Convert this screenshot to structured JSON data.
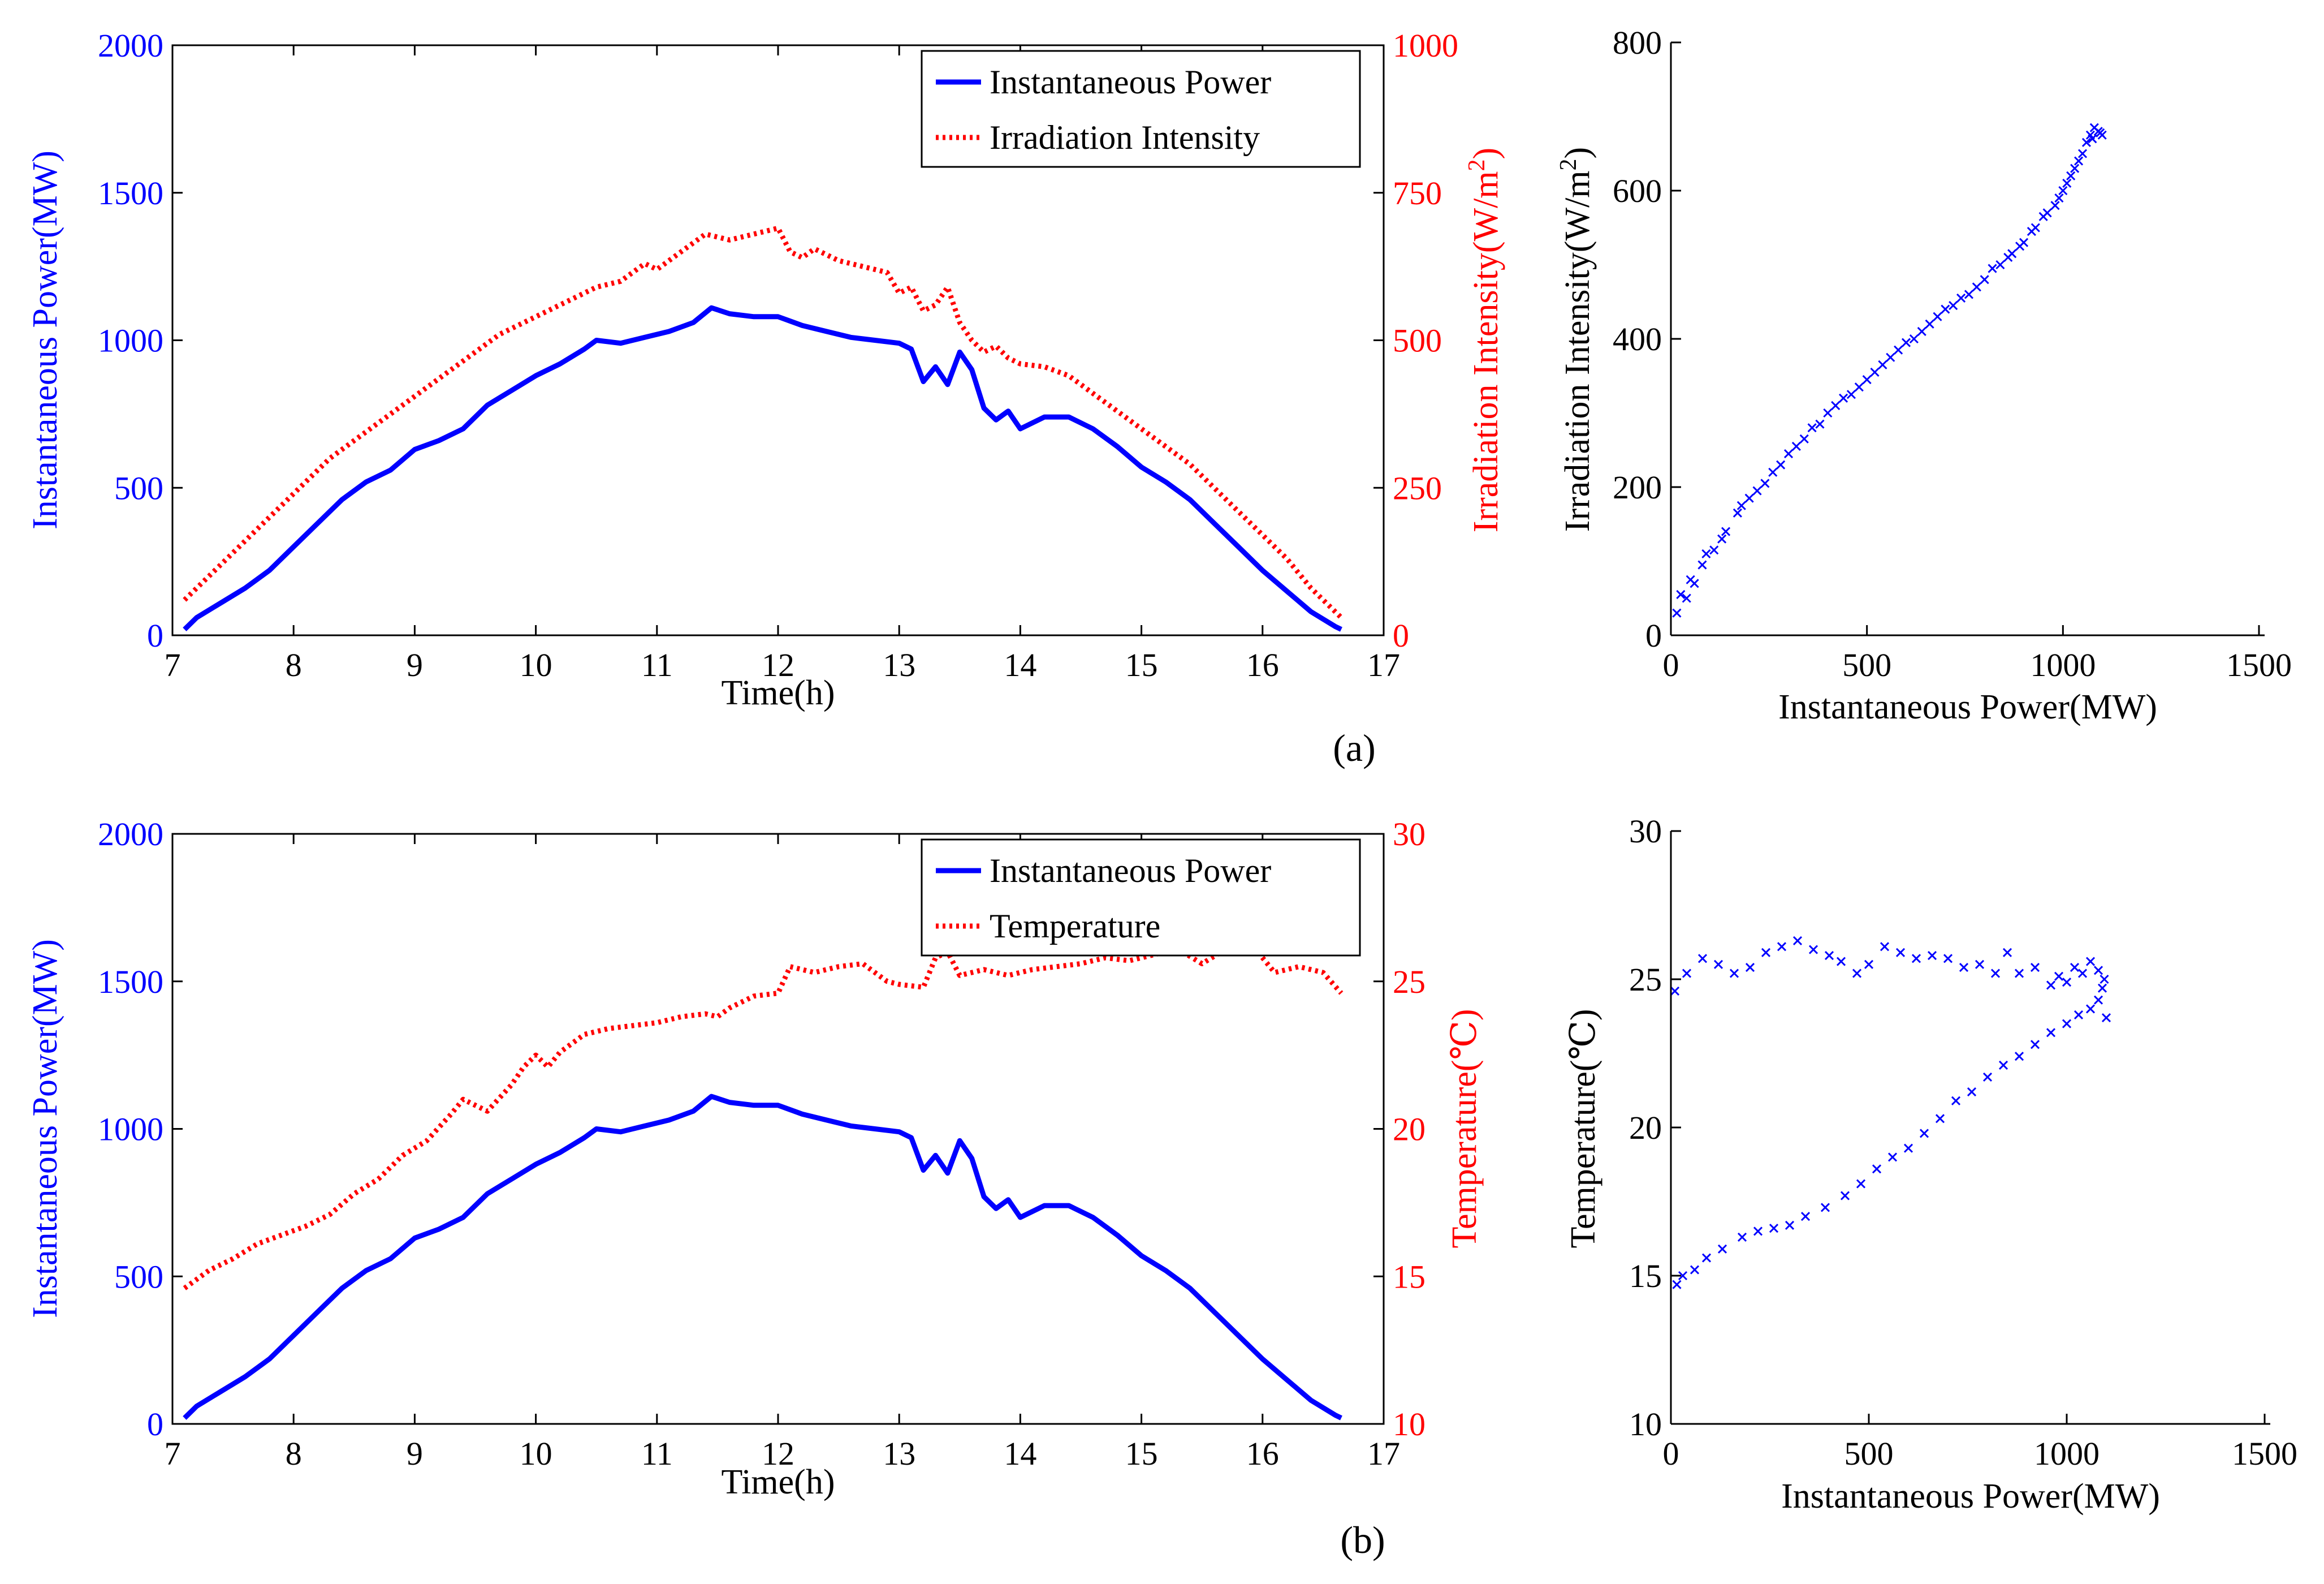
{
  "colors": {
    "blue": "#0000ff",
    "red": "#ff0000",
    "black": "#000000"
  },
  "chart_data": [
    {
      "id": "a-line",
      "type": "line",
      "panel_label": "(a)",
      "xlabel": "Time(h)",
      "xlim": [
        7,
        17
      ],
      "x_ticks": [
        7,
        8,
        9,
        10,
        11,
        12,
        13,
        14,
        15,
        16,
        17
      ],
      "y_left": {
        "label": "Instantaneous Power(MW)",
        "lim": [
          0,
          2000
        ],
        "ticks": [
          0,
          500,
          1000,
          1500,
          2000
        ]
      },
      "y_right": {
        "label_main": "Irradiation Intensity(W/m",
        "label_sup": "2",
        "label_end": ")",
        "lim": [
          0,
          1000
        ],
        "ticks": [
          0,
          250,
          500,
          750,
          1000
        ]
      },
      "legend": [
        "Instantaneous Power",
        "Irradiation Intensity"
      ],
      "series": [
        {
          "name": "Instantaneous Power",
          "axis": "left",
          "style": "solid",
          "x": [
            7.1,
            7.2,
            7.4,
            7.6,
            7.8,
            8.0,
            8.2,
            8.4,
            8.6,
            8.8,
            9.0,
            9.2,
            9.4,
            9.6,
            9.8,
            10.0,
            10.2,
            10.4,
            10.5,
            10.7,
            10.9,
            11.1,
            11.3,
            11.45,
            11.6,
            11.8,
            12.0,
            12.2,
            12.4,
            12.6,
            12.8,
            13.0,
            13.1,
            13.2,
            13.3,
            13.4,
            13.5,
            13.6,
            13.7,
            13.8,
            13.9,
            14.0,
            14.2,
            14.4,
            14.6,
            14.8,
            15.0,
            15.2,
            15.4,
            15.6,
            15.8,
            16.0,
            16.2,
            16.4,
            16.6,
            16.65
          ],
          "y": [
            20,
            60,
            110,
            160,
            220,
            300,
            380,
            460,
            520,
            560,
            630,
            660,
            700,
            780,
            830,
            880,
            920,
            970,
            1000,
            990,
            1010,
            1030,
            1060,
            1110,
            1090,
            1080,
            1080,
            1050,
            1030,
            1010,
            1000,
            990,
            970,
            860,
            910,
            850,
            960,
            900,
            770,
            730,
            760,
            700,
            740,
            740,
            700,
            640,
            570,
            520,
            460,
            380,
            300,
            220,
            150,
            80,
            30,
            20
          ]
        },
        {
          "name": "Irradiation Intensity",
          "axis": "right",
          "style": "dotted",
          "x": [
            7.1,
            7.3,
            7.5,
            7.7,
            7.9,
            8.1,
            8.3,
            8.5,
            8.7,
            8.9,
            9.1,
            9.3,
            9.5,
            9.7,
            9.9,
            10.1,
            10.3,
            10.5,
            10.7,
            10.9,
            11.0,
            11.2,
            11.4,
            11.6,
            11.8,
            12.0,
            12.1,
            12.2,
            12.3,
            12.5,
            12.7,
            12.9,
            13.0,
            13.1,
            13.2,
            13.3,
            13.4,
            13.5,
            13.6,
            13.7,
            13.8,
            13.9,
            14.0,
            14.2,
            14.4,
            14.6,
            14.8,
            15.0,
            15.2,
            15.4,
            15.6,
            15.8,
            16.0,
            16.2,
            16.4,
            16.65
          ],
          "y": [
            60,
            100,
            140,
            180,
            220,
            260,
            300,
            330,
            360,
            390,
            420,
            450,
            480,
            510,
            530,
            550,
            570,
            590,
            600,
            630,
            620,
            650,
            680,
            670,
            680,
            690,
            650,
            640,
            655,
            635,
            625,
            615,
            580,
            590,
            550,
            560,
            590,
            530,
            500,
            480,
            490,
            470,
            460,
            455,
            440,
            410,
            380,
            350,
            320,
            290,
            250,
            210,
            170,
            130,
            80,
            30
          ]
        }
      ]
    },
    {
      "id": "a-scatter",
      "type": "scatter",
      "xlabel": "Instantaneous Power(MW)",
      "xlim": [
        0,
        1500
      ],
      "x_ticks": [
        0,
        500,
        1000,
        1500
      ],
      "y_left": {
        "label_main": "Irradiation Intensity(W/m",
        "label_sup": "2",
        "label_end": ")",
        "lim": [
          0,
          800
        ],
        "ticks": [
          0,
          200,
          400,
          600,
          800
        ]
      },
      "points": {
        "x": [
          15,
          40,
          60,
          80,
          110,
          140,
          170,
          200,
          240,
          280,
          320,
          360,
          400,
          440,
          480,
          520,
          560,
          600,
          640,
          680,
          720,
          760,
          800,
          840,
          870,
          900,
          930,
          960,
          990,
          1010,
          1030,
          1050,
          1060,
          1070,
          1080,
          1090,
          1100,
          25,
          50,
          90,
          130,
          180,
          220,
          260,
          300,
          340,
          380,
          420,
          460,
          500,
          540,
          580,
          620,
          660,
          700,
          740,
          780,
          820,
          860,
          890,
          920,
          950,
          980,
          1000,
          1020,
          1040,
          1075,
          1095
        ],
        "y": [
          30,
          50,
          70,
          95,
          115,
          140,
          165,
          185,
          205,
          230,
          255,
          280,
          300,
          320,
          335,
          355,
          375,
          395,
          410,
          430,
          445,
          460,
          480,
          500,
          515,
          530,
          550,
          570,
          590,
          610,
          630,
          650,
          665,
          675,
          685,
          680,
          675,
          55,
          75,
          110,
          130,
          175,
          195,
          220,
          245,
          265,
          285,
          310,
          325,
          345,
          365,
          385,
          400,
          420,
          440,
          455,
          470,
          495,
          510,
          525,
          545,
          565,
          580,
          600,
          620,
          640,
          670,
          678
        ]
      }
    },
    {
      "id": "b-line",
      "type": "line",
      "panel_label": "(b)",
      "xlabel": "Time(h)",
      "xlim": [
        7,
        17
      ],
      "x_ticks": [
        7,
        8,
        9,
        10,
        11,
        12,
        13,
        14,
        15,
        16,
        17
      ],
      "y_left": {
        "label": "Instantaneous Power(MW)",
        "lim": [
          0,
          2000
        ],
        "ticks": [
          0,
          500,
          1000,
          1500,
          2000
        ]
      },
      "y_right": {
        "label": "Temperature(℃)",
        "lim": [
          10,
          30
        ],
        "ticks": [
          10,
          15,
          20,
          25,
          30
        ]
      },
      "legend": [
        "Instantaneous Power",
        "Temperature"
      ],
      "series": [
        {
          "name": "Instantaneous Power",
          "axis": "left",
          "style": "solid",
          "x": [
            7.1,
            7.2,
            7.4,
            7.6,
            7.8,
            8.0,
            8.2,
            8.4,
            8.6,
            8.8,
            9.0,
            9.2,
            9.4,
            9.6,
            9.8,
            10.0,
            10.2,
            10.4,
            10.5,
            10.7,
            10.9,
            11.1,
            11.3,
            11.45,
            11.6,
            11.8,
            12.0,
            12.2,
            12.4,
            12.6,
            12.8,
            13.0,
            13.1,
            13.2,
            13.3,
            13.4,
            13.5,
            13.6,
            13.7,
            13.8,
            13.9,
            14.0,
            14.2,
            14.4,
            14.6,
            14.8,
            15.0,
            15.2,
            15.4,
            15.6,
            15.8,
            16.0,
            16.2,
            16.4,
            16.6,
            16.65
          ],
          "y": [
            20,
            60,
            110,
            160,
            220,
            300,
            380,
            460,
            520,
            560,
            630,
            660,
            700,
            780,
            830,
            880,
            920,
            970,
            1000,
            990,
            1010,
            1030,
            1060,
            1110,
            1090,
            1080,
            1080,
            1050,
            1030,
            1010,
            1000,
            990,
            970,
            860,
            910,
            850,
            960,
            900,
            770,
            730,
            760,
            700,
            740,
            740,
            700,
            640,
            570,
            520,
            460,
            380,
            300,
            220,
            150,
            80,
            30,
            20
          ]
        },
        {
          "name": "Temperature",
          "axis": "right",
          "style": "dotted",
          "x": [
            7.1,
            7.3,
            7.5,
            7.7,
            7.9,
            8.1,
            8.3,
            8.5,
            8.7,
            8.9,
            9.1,
            9.3,
            9.4,
            9.6,
            9.8,
            9.9,
            10.0,
            10.1,
            10.2,
            10.4,
            10.6,
            10.8,
            11.0,
            11.2,
            11.4,
            11.5,
            11.6,
            11.8,
            12.0,
            12.1,
            12.3,
            12.5,
            12.7,
            12.9,
            13.0,
            13.2,
            13.3,
            13.4,
            13.5,
            13.7,
            13.9,
            14.1,
            14.3,
            14.5,
            14.7,
            14.9,
            15.1,
            15.3,
            15.5,
            15.7,
            15.9,
            16.1,
            16.3,
            16.5,
            16.65
          ],
          "y": [
            14.6,
            15.2,
            15.6,
            16.1,
            16.4,
            16.7,
            17.1,
            17.8,
            18.3,
            19.1,
            19.6,
            20.5,
            21.0,
            20.6,
            21.5,
            22.1,
            22.5,
            22.1,
            22.6,
            23.2,
            23.4,
            23.5,
            23.6,
            23.8,
            23.9,
            23.8,
            24.1,
            24.5,
            24.6,
            25.5,
            25.3,
            25.5,
            25.6,
            25.0,
            24.9,
            24.8,
            25.8,
            26.0,
            25.2,
            25.4,
            25.2,
            25.4,
            25.5,
            25.6,
            25.8,
            25.7,
            25.9,
            26.1,
            25.6,
            26.1,
            26.3,
            25.3,
            25.5,
            25.3,
            24.6
          ]
        }
      ]
    },
    {
      "id": "b-scatter",
      "type": "scatter",
      "xlabel": "Instantaneous Power(MW)",
      "xlim": [
        0,
        1500
      ],
      "x_ticks": [
        0,
        500,
        1000,
        1500
      ],
      "y_left": {
        "label": "Temperature(℃)",
        "lim": [
          10,
          30
        ],
        "ticks": [
          10,
          15,
          20,
          25,
          30
        ]
      },
      "points": {
        "x": [
          15,
          30,
          60,
          90,
          130,
          180,
          220,
          260,
          300,
          340,
          390,
          440,
          480,
          520,
          560,
          600,
          640,
          680,
          720,
          760,
          800,
          840,
          880,
          920,
          960,
          1000,
          1030,
          1060,
          1080,
          1090,
          1100,
          1095,
          1080,
          1060,
          1040,
          1020,
          1000,
          980,
          960,
          920,
          880,
          850,
          820,
          780,
          740,
          700,
          660,
          620,
          580,
          540,
          500,
          470,
          430,
          400,
          360,
          320,
          280,
          240,
          200,
          160,
          120,
          80,
          40,
          10
        ],
        "y": [
          14.7,
          15.0,
          15.2,
          15.6,
          15.9,
          16.3,
          16.5,
          16.6,
          16.7,
          17.0,
          17.3,
          17.7,
          18.1,
          18.6,
          19.0,
          19.3,
          19.8,
          20.3,
          20.9,
          21.2,
          21.7,
          22.1,
          22.4,
          22.8,
          23.2,
          23.5,
          23.8,
          24.0,
          24.3,
          24.7,
          23.7,
          25.0,
          25.3,
          25.6,
          25.2,
          25.4,
          24.9,
          25.1,
          24.8,
          25.4,
          25.2,
          25.9,
          25.2,
          25.5,
          25.4,
          25.7,
          25.8,
          25.7,
          25.9,
          26.1,
          25.5,
          25.2,
          25.6,
          25.8,
          26.0,
          26.3,
          26.1,
          25.9,
          25.4,
          25.2,
          25.5,
          25.7,
          25.2,
          24.6
        ]
      }
    }
  ]
}
